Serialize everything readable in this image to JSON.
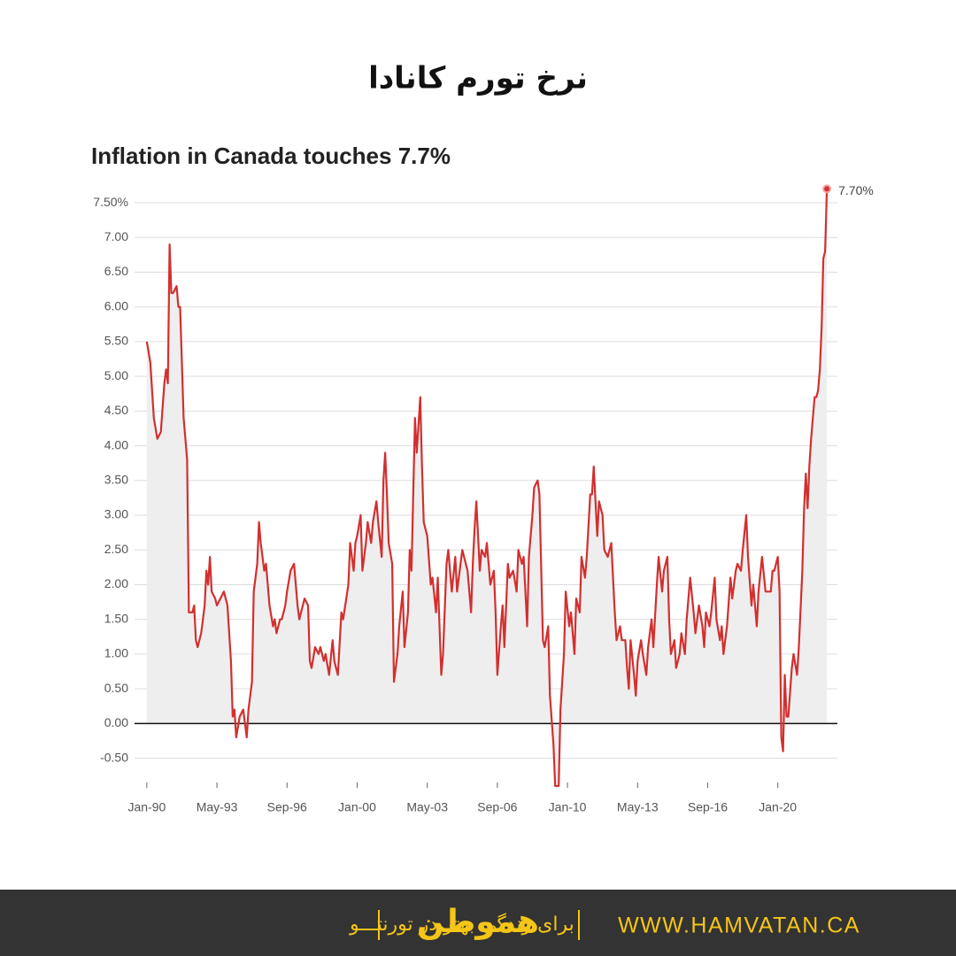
{
  "header": {
    "title": "نرخ تورم کانادا"
  },
  "chart_data": {
    "type": "area-line",
    "title": "Inflation in Canada touches 7.7%",
    "color": "#d32f2f",
    "fill": "#eeeeee",
    "grid": true,
    "xlim": [
      -7,
      394
    ],
    "xticks": [
      {
        "value": 0,
        "label": "Jan-90"
      },
      {
        "value": 40,
        "label": "May-93"
      },
      {
        "value": 80,
        "label": "Sep-96"
      },
      {
        "value": 120,
        "label": "Jan-00"
      },
      {
        "value": 160,
        "label": "May-03"
      },
      {
        "value": 200,
        "label": "Sep-06"
      },
      {
        "value": 240,
        "label": "Jan-10"
      },
      {
        "value": 280,
        "label": "May-13"
      },
      {
        "value": 320,
        "label": "Sep-16"
      },
      {
        "value": 360,
        "label": "Jan-20"
      }
    ],
    "ylim": [
      -0.85,
      8.1
    ],
    "yticks": [
      {
        "value": -0.5,
        "label": "-0.50"
      },
      {
        "value": 0,
        "label": "0.00"
      },
      {
        "value": 0.5,
        "label": "0.50"
      },
      {
        "value": 1,
        "label": "1.00"
      },
      {
        "value": 1.5,
        "label": "1.50"
      },
      {
        "value": 2,
        "label": "2.00"
      },
      {
        "value": 2.5,
        "label": "2.50"
      },
      {
        "value": 3,
        "label": "3.00"
      },
      {
        "value": 3.5,
        "label": "3.50"
      },
      {
        "value": 4,
        "label": "4.00"
      },
      {
        "value": 4.5,
        "label": "4.50"
      },
      {
        "value": 5,
        "label": "5.00"
      },
      {
        "value": 5.5,
        "label": "5.50"
      },
      {
        "value": 6,
        "label": "6.00"
      },
      {
        "value": 6.5,
        "label": "6.50"
      },
      {
        "value": 7,
        "label": "7.00"
      },
      {
        "value": 7.5,
        "label": "7.50%"
      }
    ],
    "x": [
      0,
      2,
      4,
      6,
      8,
      10,
      11,
      12,
      13,
      14,
      15,
      17,
      18,
      19,
      21,
      23,
      24,
      26,
      27,
      28,
      29,
      31,
      33,
      34,
      35,
      36,
      37,
      39,
      40,
      42,
      44,
      46,
      48,
      49,
      50,
      51,
      53,
      55,
      57,
      58,
      60,
      61,
      63,
      64,
      65,
      67,
      68,
      70,
      72,
      73,
      74,
      76,
      77,
      79,
      80,
      82,
      84,
      86,
      87,
      89,
      90,
      92,
      93,
      94,
      96,
      98,
      99,
      101,
      102,
      104,
      106,
      107,
      109,
      111,
      112,
      115,
      116,
      118,
      119,
      120,
      122,
      123,
      125,
      126,
      128,
      129,
      131,
      132,
      134,
      135,
      136,
      137,
      138,
      140,
      141,
      143,
      144,
      146,
      147,
      149,
      150,
      151,
      153,
      154,
      156,
      157,
      158,
      160,
      162,
      163,
      165,
      166,
      168,
      169,
      171,
      172,
      174,
      176,
      177,
      179,
      180,
      182,
      183,
      185,
      186,
      187,
      188,
      190,
      191,
      193,
      194,
      196,
      198,
      199,
      200,
      202,
      203,
      204,
      206,
      207,
      209,
      211,
      212,
      214,
      215,
      217,
      218,
      220,
      221,
      223,
      224,
      226,
      227,
      229,
      230,
      232,
      233,
      235,
      236,
      238,
      239,
      241,
      242,
      244,
      245,
      247,
      248,
      250,
      251,
      253,
      254,
      255,
      257,
      258,
      260,
      261,
      263,
      265,
      267,
      268,
      270,
      271,
      273,
      274,
      275,
      276,
      278,
      279,
      280,
      282,
      283,
      285,
      286,
      288,
      289,
      291,
      292,
      294,
      295,
      297,
      298,
      299,
      301,
      302,
      304,
      305,
      307,
      308,
      310,
      312,
      313,
      315,
      317,
      318,
      319,
      321,
      322,
      324,
      325,
      327,
      328,
      329,
      331,
      333,
      334,
      336,
      337,
      339,
      340,
      342,
      343,
      345,
      346,
      348,
      349,
      351,
      353,
      354,
      356,
      357,
      358,
      360,
      361,
      362,
      363,
      364,
      365,
      366,
      368,
      369,
      371,
      372,
      374,
      375,
      376,
      377,
      378,
      379,
      380,
      381,
      382,
      383,
      384,
      385,
      386,
      387,
      388
    ],
    "values": [
      5.5,
      5.2,
      4.4,
      4.1,
      4.2,
      4.9,
      5.1,
      4.9,
      6.9,
      6.2,
      6.2,
      6.3,
      6.0,
      6.0,
      4.4,
      3.8,
      1.6,
      1.6,
      1.7,
      1.2,
      1.1,
      1.3,
      1.7,
      2.2,
      2.0,
      2.4,
      1.9,
      1.8,
      1.7,
      1.8,
      1.9,
      1.7,
      0.9,
      0.1,
      0.2,
      -0.2,
      0.1,
      0.2,
      -0.2,
      0.2,
      0.6,
      1.9,
      2.3,
      2.9,
      2.6,
      2.2,
      2.3,
      1.7,
      1.4,
      1.5,
      1.3,
      1.5,
      1.5,
      1.7,
      1.9,
      2.2,
      2.3,
      1.7,
      1.5,
      1.7,
      1.8,
      1.7,
      0.9,
      0.8,
      1.1,
      1.0,
      1.1,
      0.9,
      1.0,
      0.7,
      1.2,
      0.9,
      0.7,
      1.6,
      1.5,
      2.0,
      2.6,
      2.2,
      2.6,
      2.7,
      3.0,
      2.2,
      2.6,
      2.9,
      2.6,
      2.9,
      3.2,
      2.9,
      2.4,
      3.5,
      3.9,
      3.3,
      2.6,
      2.3,
      0.6,
      1.0,
      1.4,
      1.9,
      1.1,
      1.6,
      2.5,
      2.2,
      4.4,
      3.9,
      4.7,
      3.7,
      2.9,
      2.7,
      2.0,
      2.1,
      1.6,
      2.1,
      0.7,
      1.0,
      2.3,
      2.5,
      1.9,
      2.4,
      1.9,
      2.3,
      2.5,
      2.3,
      2.2,
      1.6,
      2.3,
      2.8,
      3.2,
      2.2,
      2.5,
      2.4,
      2.6,
      2.0,
      2.2,
      1.6,
      0.7,
      1.4,
      1.7,
      1.1,
      2.3,
      2.1,
      2.2,
      1.9,
      2.5,
      2.3,
      2.4,
      1.4,
      2.4,
      3.0,
      3.4,
      3.5,
      3.3,
      1.2,
      1.1,
      1.4,
      0.4,
      -0.3,
      -0.9,
      -0.9,
      0.2,
      1.0,
      1.9,
      1.4,
      1.6,
      1.0,
      1.8,
      1.6,
      2.4,
      2.1,
      2.4,
      3.3,
      3.3,
      3.7,
      2.7,
      3.2,
      3.0,
      2.5,
      2.4,
      2.6,
      1.6,
      1.2,
      1.4,
      1.2,
      1.2,
      0.8,
      0.5,
      1.2,
      0.7,
      0.4,
      0.9,
      1.2,
      1.0,
      0.7,
      1.1,
      1.5,
      1.1,
      2.0,
      2.4,
      1.9,
      2.2,
      2.4,
      1.5,
      1.0,
      1.2,
      0.8,
      1.0,
      1.3,
      1.0,
      1.5,
      2.1,
      1.6,
      1.3,
      1.7,
      1.4,
      1.1,
      1.6,
      1.4,
      1.6,
      2.1,
      1.5,
      1.2,
      1.4,
      1.0,
      1.4,
      2.1,
      1.8,
      2.2,
      2.3,
      2.2,
      2.5,
      3.0,
      2.4,
      1.7,
      2.0,
      1.4,
      1.9,
      2.4,
      1.9,
      1.9,
      1.9,
      2.2,
      2.2,
      2.4,
      1.9,
      -0.2,
      -0.4,
      0.7,
      0.1,
      0.1,
      0.8,
      1.0,
      0.7,
      1.1,
      2.2,
      3.1,
      3.6,
      3.1,
      3.7,
      4.1,
      4.4,
      4.7,
      4.7,
      4.8,
      5.1,
      5.7,
      6.7,
      6.8,
      7.7
    ],
    "annotations": [
      {
        "text": "7.70%",
        "x": 388,
        "y": 7.7
      }
    ]
  },
  "footer": {
    "tagline": "برای زندگی بهتر در تورنتـــو",
    "logo": "هموطن",
    "website": "WWW.HAMVATAN.CA"
  }
}
